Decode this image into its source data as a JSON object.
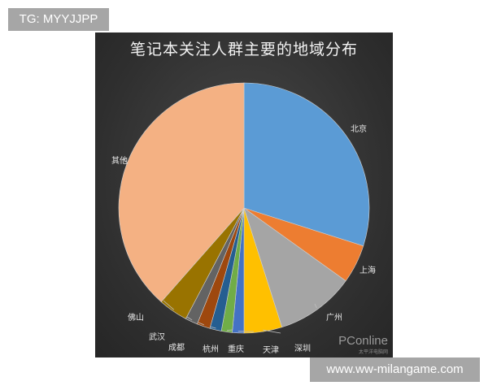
{
  "overlay": {
    "tg_label": "TG: MYYJJPP",
    "site_label": "www.ww-milangame.com"
  },
  "watermark": {
    "brand": "PConline",
    "sub": "太平洋电脑网"
  },
  "chart_data": {
    "type": "pie",
    "title": "笔记本关注人群主要的地域分布",
    "start_angle": "12 o'clock, clockwise",
    "slices": [
      {
        "label": "北京",
        "value": 29.9,
        "color": "#5b9bd5"
      },
      {
        "label": "上海",
        "value": 5.0,
        "color": "#ed7d31"
      },
      {
        "label": "广州",
        "value": 10.2,
        "color": "#a5a5a5"
      },
      {
        "label": "深圳",
        "value": 4.9,
        "color": "#ffc000"
      },
      {
        "label": "天津",
        "value": 1.5,
        "color": "#4472c4"
      },
      {
        "label": "重庆",
        "value": 1.4,
        "color": "#70ad47"
      },
      {
        "label": "杭州",
        "value": 1.5,
        "color": "#255e91"
      },
      {
        "label": "成都",
        "value": 1.7,
        "color": "#9e480e"
      },
      {
        "label": "武汉",
        "value": 1.6,
        "color": "#636363"
      },
      {
        "label": "佛山",
        "value": 3.8,
        "color": "#997300"
      },
      {
        "label": "其他",
        "value": 38.5,
        "color": "#f4b183"
      }
    ]
  }
}
